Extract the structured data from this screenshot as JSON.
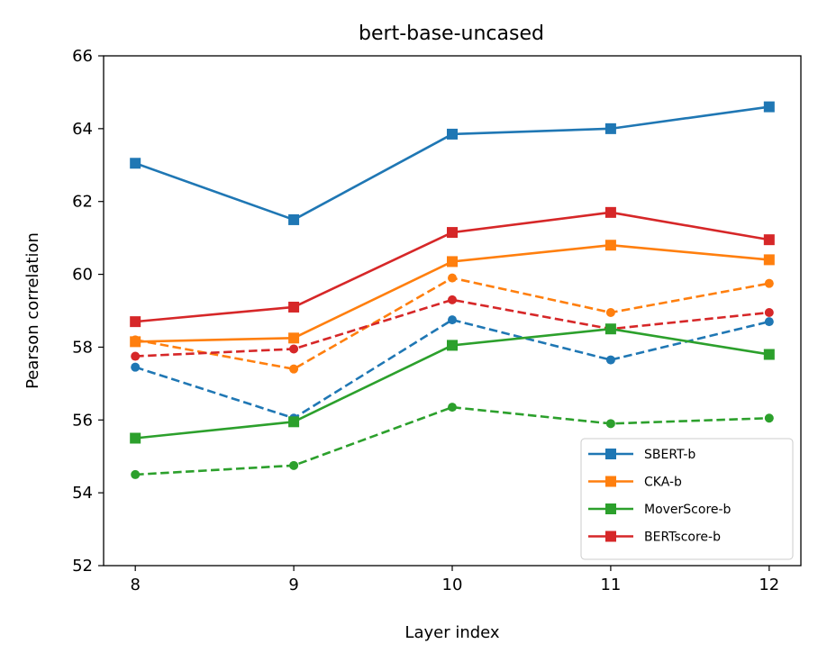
{
  "chart_data": {
    "type": "line",
    "title": "bert-base-uncased",
    "xlabel": "Layer index",
    "ylabel": "Pearson correlation",
    "x": [
      8,
      9,
      10,
      11,
      12
    ],
    "xticks": [
      "8",
      "9",
      "10",
      "11",
      "12"
    ],
    "xlim": [
      7.8,
      12.2
    ],
    "ylim": [
      52,
      66
    ],
    "yticks": [
      "52",
      "54",
      "56",
      "58",
      "60",
      "62",
      "64",
      "66"
    ],
    "grid": false,
    "legend_position": "lower right",
    "series": [
      {
        "name": "SBERT-b",
        "color": "#1f77b4",
        "style": "solid",
        "marker": "square",
        "values": [
          63.05,
          61.5,
          63.85,
          64.0,
          64.6
        ]
      },
      {
        "name": "CKA-b",
        "color": "#ff7f0e",
        "style": "solid",
        "marker": "square",
        "values": [
          58.15,
          58.25,
          60.35,
          60.8,
          60.4
        ]
      },
      {
        "name": "MoverScore-b",
        "color": "#2ca02c",
        "style": "solid",
        "marker": "square",
        "values": [
          55.5,
          55.95,
          58.05,
          58.5,
          57.8
        ]
      },
      {
        "name": "BERTscore-b",
        "color": "#d62728",
        "style": "solid",
        "marker": "square",
        "values": [
          58.7,
          59.1,
          61.15,
          61.7,
          60.95
        ]
      },
      {
        "color": "#1f77b4",
        "style": "dashed",
        "marker": "circle",
        "values": [
          57.45,
          56.05,
          58.75,
          57.65,
          58.7
        ]
      },
      {
        "color": "#ff7f0e",
        "style": "dashed",
        "marker": "circle",
        "values": [
          58.2,
          57.4,
          59.9,
          58.95,
          59.75
        ]
      },
      {
        "color": "#2ca02c",
        "style": "dashed",
        "marker": "circle",
        "values": [
          54.5,
          54.75,
          56.35,
          55.9,
          56.05
        ]
      },
      {
        "color": "#d62728",
        "style": "dashed",
        "marker": "circle",
        "values": [
          57.75,
          57.95,
          59.3,
          58.5,
          58.95
        ]
      }
    ]
  }
}
